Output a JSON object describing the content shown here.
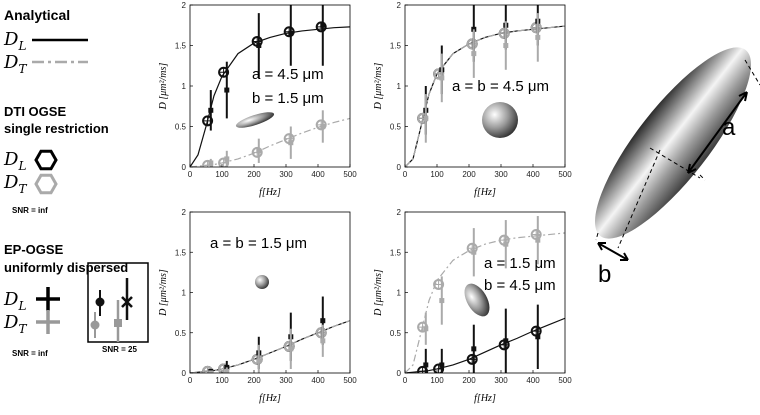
{
  "legend": {
    "analytical": {
      "title": "Analytical",
      "dl": {
        "main": "D",
        "sub": "L"
      },
      "dt": {
        "main": "D",
        "sub": "T"
      }
    },
    "dti": {
      "title": "DTI OGSE",
      "subtitle": "single restriction",
      "dl": {
        "main": "D",
        "sub": "L"
      },
      "dt": {
        "main": "D",
        "sub": "T"
      },
      "snr": "SNR = inf"
    },
    "ep": {
      "title": "EP-OGSE",
      "subtitle": "uniformly dispersed",
      "dl": {
        "main": "D",
        "sub": "L"
      },
      "dt": {
        "main": "D",
        "sub": "T"
      },
      "snr": "SNR = inf",
      "snr_box": "SNR = 25"
    }
  },
  "diagram": {
    "a": "a",
    "b": "b"
  },
  "chart_data": [
    {
      "type": "line",
      "xlabel": "f[Hz]",
      "ylabel": "D [μm²/ms]",
      "xlim": [
        0,
        500
      ],
      "ylim": [
        0,
        2
      ],
      "xticks": [
        0,
        100,
        200,
        300,
        400,
        500
      ],
      "yticks": [
        0,
        0.5,
        1,
        1.5,
        2
      ],
      "annotations": [
        "a = 4.5 μm",
        "b = 1.5 μm"
      ],
      "series": [
        {
          "style": "solid",
          "color": "#111111",
          "x": [
            0,
            25,
            50,
            75,
            100,
            150,
            200,
            250,
            300,
            350,
            400,
            450,
            500
          ],
          "values": [
            0,
            0.15,
            0.5,
            0.88,
            1.12,
            1.4,
            1.53,
            1.6,
            1.65,
            1.68,
            1.7,
            1.72,
            1.73
          ]
        },
        {
          "style": "dashdot",
          "color": "#aaaaaa",
          "x": [
            0,
            25,
            50,
            75,
            100,
            150,
            200,
            250,
            300,
            350,
            400,
            450,
            500
          ],
          "values": [
            0,
            0.01,
            0.02,
            0.03,
            0.05,
            0.1,
            0.17,
            0.26,
            0.34,
            0.42,
            0.49,
            0.55,
            0.6
          ]
        },
        {
          "style": "marker",
          "color": "#111111",
          "x": [
            55,
            105,
            210,
            310,
            410
          ],
          "values": [
            0.57,
            1.17,
            1.55,
            1.67,
            1.73
          ]
        },
        {
          "style": "marker",
          "color": "#aaaaaa",
          "x": [
            55,
            105,
            210,
            310,
            410
          ],
          "values": [
            0.02,
            0.05,
            0.18,
            0.35,
            0.52
          ]
        },
        {
          "style": "errorbar",
          "color": "#111111",
          "x": [
            65,
            115,
            215,
            315,
            415
          ],
          "values": [
            0.7,
            0.95,
            1.5,
            1.65,
            1.75
          ],
          "errors": [
            0.25,
            0.35,
            0.4,
            0.4,
            0.5
          ]
        },
        {
          "style": "errorbar",
          "color": "#aaaaaa",
          "x": [
            65,
            115,
            215,
            315,
            415
          ],
          "values": [
            0.05,
            0.1,
            0.2,
            0.3,
            0.5
          ],
          "errors": [
            0.05,
            0.1,
            0.15,
            0.2,
            0.2
          ]
        }
      ]
    },
    {
      "type": "line",
      "xlabel": "f[Hz]",
      "ylabel": "D [μm²/ms]",
      "xlim": [
        0,
        500
      ],
      "ylim": [
        0,
        2
      ],
      "xticks": [
        0,
        100,
        200,
        300,
        400,
        500
      ],
      "yticks": [
        0,
        0.5,
        1,
        1.5,
        2
      ],
      "annotations": [
        "a = b = 4.5 μm"
      ],
      "series": [
        {
          "style": "solid",
          "color": "#111111",
          "x": [
            0,
            25,
            50,
            75,
            100,
            150,
            200,
            250,
            300,
            350,
            400,
            450,
            500
          ],
          "values": [
            0,
            0.1,
            0.5,
            0.9,
            1.15,
            1.4,
            1.52,
            1.6,
            1.65,
            1.68,
            1.7,
            1.72,
            1.74
          ]
        },
        {
          "style": "dashdot",
          "color": "#aaaaaa",
          "x": [
            0,
            25,
            50,
            75,
            100,
            150,
            200,
            250,
            300,
            350,
            400,
            450,
            500
          ],
          "values": [
            0,
            0.1,
            0.5,
            0.9,
            1.15,
            1.4,
            1.52,
            1.6,
            1.65,
            1.68,
            1.7,
            1.72,
            1.74
          ]
        },
        {
          "style": "marker",
          "color": "#111111",
          "x": [
            55,
            105,
            210,
            310,
            410
          ],
          "values": [
            0.6,
            1.15,
            1.52,
            1.65,
            1.72
          ]
        },
        {
          "style": "marker",
          "color": "#aaaaaa",
          "x": [
            55,
            105,
            210,
            310,
            410
          ],
          "values": [
            0.6,
            1.15,
            1.52,
            1.65,
            1.72
          ]
        },
        {
          "style": "errorbar",
          "color": "#111111",
          "x": [
            65,
            115,
            215,
            315,
            415
          ],
          "values": [
            0.7,
            1.2,
            1.7,
            1.75,
            1.8
          ],
          "errors": [
            0.3,
            0.3,
            0.4,
            0.3,
            0.3
          ]
        },
        {
          "style": "errorbar",
          "color": "#aaaaaa",
          "x": [
            65,
            115,
            215,
            315,
            415
          ],
          "values": [
            0.6,
            1.1,
            1.4,
            1.5,
            1.6
          ],
          "errors": [
            0.3,
            0.3,
            0.3,
            0.3,
            0.3
          ]
        }
      ]
    },
    {
      "type": "line",
      "xlabel": "f[Hz]",
      "ylabel": "D [μm²/ms]",
      "xlim": [
        0,
        500
      ],
      "ylim": [
        0,
        2
      ],
      "xticks": [
        0,
        100,
        200,
        300,
        400,
        500
      ],
      "yticks": [
        0,
        0.5,
        1,
        1.5,
        2
      ],
      "annotations": [
        "a = b = 1.5 μm"
      ],
      "series": [
        {
          "style": "solid",
          "color": "#111111",
          "x": [
            0,
            25,
            50,
            75,
            100,
            150,
            200,
            250,
            300,
            350,
            400,
            450,
            500
          ],
          "values": [
            0,
            0.01,
            0.02,
            0.03,
            0.05,
            0.1,
            0.17,
            0.25,
            0.33,
            0.42,
            0.5,
            0.58,
            0.65
          ]
        },
        {
          "style": "dashdot",
          "color": "#aaaaaa",
          "x": [
            0,
            25,
            50,
            75,
            100,
            150,
            200,
            250,
            300,
            350,
            400,
            450,
            500
          ],
          "values": [
            0,
            0.01,
            0.02,
            0.03,
            0.05,
            0.1,
            0.17,
            0.25,
            0.33,
            0.42,
            0.5,
            0.58,
            0.65
          ]
        },
        {
          "style": "marker",
          "color": "#111111",
          "x": [
            55,
            105,
            210,
            310,
            410
          ],
          "values": [
            0.02,
            0.05,
            0.17,
            0.33,
            0.5
          ]
        },
        {
          "style": "marker",
          "color": "#aaaaaa",
          "x": [
            55,
            105,
            210,
            310,
            410
          ],
          "values": [
            0.02,
            0.05,
            0.17,
            0.33,
            0.5
          ]
        },
        {
          "style": "errorbar",
          "color": "#111111",
          "x": [
            65,
            115,
            215,
            315,
            415
          ],
          "values": [
            0.02,
            0.07,
            0.25,
            0.45,
            0.65
          ],
          "errors": [
            0.03,
            0.08,
            0.2,
            0.3,
            0.3
          ]
        },
        {
          "style": "errorbar",
          "color": "#aaaaaa",
          "x": [
            65,
            115,
            215,
            315,
            415
          ],
          "values": [
            0,
            0.02,
            0.15,
            0.3,
            0.4
          ],
          "errors": [
            0.03,
            0.05,
            0.2,
            0.25,
            0.2
          ]
        }
      ]
    },
    {
      "type": "line",
      "xlabel": "f[Hz]",
      "ylabel": "D [μm²/ms]",
      "xlim": [
        0,
        500
      ],
      "ylim": [
        0,
        2
      ],
      "xticks": [
        0,
        100,
        200,
        300,
        400,
        500
      ],
      "yticks": [
        0,
        0.5,
        1,
        1.5,
        2
      ],
      "annotations": [
        "a = 1.5 μm",
        "b = 4.5 μm"
      ],
      "series": [
        {
          "style": "solid",
          "color": "#111111",
          "x": [
            0,
            25,
            50,
            75,
            100,
            150,
            200,
            250,
            300,
            350,
            400,
            450,
            500
          ],
          "values": [
            0,
            0.01,
            0.02,
            0.03,
            0.05,
            0.1,
            0.17,
            0.26,
            0.35,
            0.43,
            0.52,
            0.6,
            0.68
          ]
        },
        {
          "style": "dashdot",
          "color": "#aaaaaa",
          "x": [
            0,
            25,
            50,
            75,
            100,
            150,
            200,
            250,
            300,
            350,
            400,
            450,
            500
          ],
          "values": [
            0,
            0.1,
            0.5,
            0.9,
            1.15,
            1.4,
            1.52,
            1.6,
            1.65,
            1.68,
            1.7,
            1.72,
            1.74
          ]
        },
        {
          "style": "marker",
          "color": "#111111",
          "x": [
            55,
            105,
            210,
            310,
            410
          ],
          "values": [
            0.02,
            0.05,
            0.17,
            0.35,
            0.52
          ]
        },
        {
          "style": "marker",
          "color": "#aaaaaa",
          "x": [
            55,
            105,
            210,
            310,
            410
          ],
          "values": [
            0.57,
            1.1,
            1.55,
            1.65,
            1.72
          ]
        },
        {
          "style": "errorbar",
          "color": "#111111",
          "x": [
            65,
            115,
            215,
            315,
            415
          ],
          "values": [
            0.1,
            0.1,
            0.3,
            0.4,
            0.45
          ],
          "errors": [
            0.2,
            0.2,
            0.3,
            0.4,
            0.4
          ]
        },
        {
          "style": "errorbar",
          "color": "#aaaaaa",
          "x": [
            65,
            115,
            215,
            315,
            415
          ],
          "values": [
            0.55,
            0.9,
            1.5,
            1.6,
            1.65
          ],
          "errors": [
            0.2,
            0.3,
            0.3,
            0.3,
            0.3
          ]
        }
      ]
    }
  ]
}
